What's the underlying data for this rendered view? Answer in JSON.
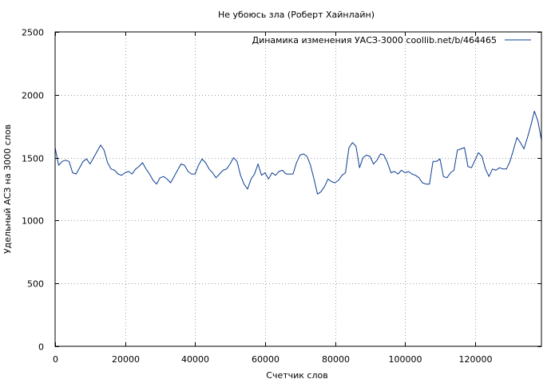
{
  "chart_data": {
    "type": "line",
    "title": "Не убоюсь зла (Роберт Хайнлайн)",
    "xlabel": "Счетчик слов",
    "ylabel": "Удельный АСЗ на 3000 слов",
    "xlim": [
      0,
      139000
    ],
    "ylim": [
      0,
      2500
    ],
    "x_ticks": [
      0,
      20000,
      40000,
      60000,
      80000,
      100000,
      120000
    ],
    "y_ticks": [
      0,
      500,
      1000,
      1500,
      2000,
      2500
    ],
    "grid": true,
    "legend_position": "top-right",
    "series": [
      {
        "name": "Динамика изменения УАСЗ-3000  coollib.net/b/464465",
        "color": "#0b3d91",
        "points": [
          [
            0,
            1580
          ],
          [
            1000,
            1440
          ],
          [
            2000,
            1470
          ],
          [
            3000,
            1480
          ],
          [
            4000,
            1470
          ],
          [
            5000,
            1380
          ],
          [
            6000,
            1370
          ],
          [
            7000,
            1420
          ],
          [
            8000,
            1470
          ],
          [
            9000,
            1490
          ],
          [
            10000,
            1450
          ],
          [
            11000,
            1500
          ],
          [
            12000,
            1550
          ],
          [
            13000,
            1600
          ],
          [
            14000,
            1560
          ],
          [
            15000,
            1460
          ],
          [
            16000,
            1410
          ],
          [
            17000,
            1400
          ],
          [
            18000,
            1370
          ],
          [
            19000,
            1360
          ],
          [
            20000,
            1380
          ],
          [
            21000,
            1390
          ],
          [
            22000,
            1370
          ],
          [
            23000,
            1410
          ],
          [
            24000,
            1430
          ],
          [
            25000,
            1460
          ],
          [
            26000,
            1410
          ],
          [
            27000,
            1370
          ],
          [
            28000,
            1320
          ],
          [
            29000,
            1290
          ],
          [
            30000,
            1340
          ],
          [
            31000,
            1350
          ],
          [
            32000,
            1330
          ],
          [
            33000,
            1300
          ],
          [
            34000,
            1350
          ],
          [
            35000,
            1400
          ],
          [
            36000,
            1450
          ],
          [
            37000,
            1440
          ],
          [
            38000,
            1390
          ],
          [
            39000,
            1370
          ],
          [
            40000,
            1370
          ],
          [
            41000,
            1440
          ],
          [
            42000,
            1490
          ],
          [
            43000,
            1460
          ],
          [
            44000,
            1410
          ],
          [
            45000,
            1380
          ],
          [
            46000,
            1340
          ],
          [
            47000,
            1370
          ],
          [
            48000,
            1400
          ],
          [
            49000,
            1410
          ],
          [
            50000,
            1450
          ],
          [
            51000,
            1500
          ],
          [
            52000,
            1470
          ],
          [
            53000,
            1360
          ],
          [
            54000,
            1290
          ],
          [
            55000,
            1250
          ],
          [
            56000,
            1330
          ],
          [
            57000,
            1370
          ],
          [
            58000,
            1450
          ],
          [
            59000,
            1360
          ],
          [
            60000,
            1380
          ],
          [
            61000,
            1330
          ],
          [
            62000,
            1380
          ],
          [
            63000,
            1360
          ],
          [
            64000,
            1390
          ],
          [
            65000,
            1400
          ],
          [
            66000,
            1370
          ],
          [
            67000,
            1370
          ],
          [
            68000,
            1370
          ],
          [
            69000,
            1460
          ],
          [
            70000,
            1520
          ],
          [
            71000,
            1530
          ],
          [
            72000,
            1510
          ],
          [
            73000,
            1440
          ],
          [
            74000,
            1330
          ],
          [
            75000,
            1210
          ],
          [
            76000,
            1230
          ],
          [
            77000,
            1270
          ],
          [
            78000,
            1330
          ],
          [
            79000,
            1310
          ],
          [
            80000,
            1300
          ],
          [
            81000,
            1320
          ],
          [
            82000,
            1360
          ],
          [
            83000,
            1380
          ],
          [
            84000,
            1580
          ],
          [
            85000,
            1620
          ],
          [
            86000,
            1590
          ],
          [
            87000,
            1420
          ],
          [
            88000,
            1500
          ],
          [
            89000,
            1520
          ],
          [
            90000,
            1510
          ],
          [
            91000,
            1450
          ],
          [
            92000,
            1480
          ],
          [
            93000,
            1530
          ],
          [
            94000,
            1520
          ],
          [
            95000,
            1460
          ],
          [
            96000,
            1380
          ],
          [
            97000,
            1390
          ],
          [
            98000,
            1370
          ],
          [
            99000,
            1400
          ],
          [
            100000,
            1380
          ],
          [
            101000,
            1390
          ],
          [
            102000,
            1370
          ],
          [
            103000,
            1360
          ],
          [
            104000,
            1340
          ],
          [
            105000,
            1300
          ],
          [
            106000,
            1290
          ],
          [
            107000,
            1290
          ],
          [
            108000,
            1470
          ],
          [
            109000,
            1470
          ],
          [
            110000,
            1490
          ],
          [
            111000,
            1350
          ],
          [
            112000,
            1340
          ],
          [
            113000,
            1380
          ],
          [
            114000,
            1400
          ],
          [
            115000,
            1560
          ],
          [
            116000,
            1570
          ],
          [
            117000,
            1580
          ],
          [
            118000,
            1430
          ],
          [
            119000,
            1420
          ],
          [
            120000,
            1480
          ],
          [
            121000,
            1540
          ],
          [
            122000,
            1510
          ],
          [
            123000,
            1410
          ],
          [
            124000,
            1350
          ],
          [
            125000,
            1410
          ],
          [
            126000,
            1400
          ],
          [
            127000,
            1420
          ],
          [
            128000,
            1410
          ],
          [
            129000,
            1410
          ],
          [
            130000,
            1470
          ],
          [
            131000,
            1560
          ],
          [
            132000,
            1660
          ],
          [
            133000,
            1620
          ],
          [
            134000,
            1570
          ],
          [
            135000,
            1660
          ],
          [
            136000,
            1760
          ],
          [
            137000,
            1870
          ],
          [
            138000,
            1790
          ],
          [
            139000,
            1640
          ]
        ]
      }
    ]
  }
}
